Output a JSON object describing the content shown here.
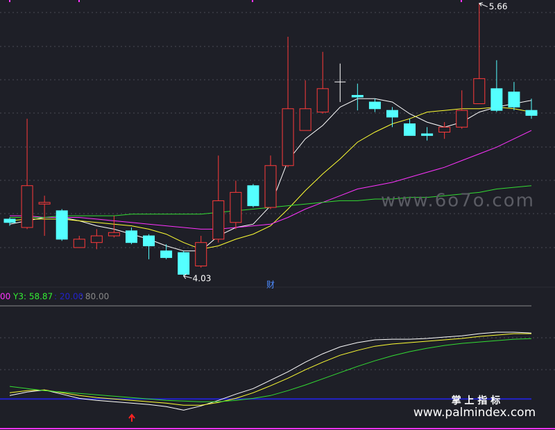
{
  "chart_data": [
    {
      "type": "candlestick",
      "open": [
        4.37,
        4.32,
        4.46,
        4.42,
        4.2,
        4.23,
        4.27,
        4.3,
        4.27,
        4.18,
        4.17,
        4.09,
        4.25,
        4.35,
        4.57,
        4.44,
        4.69,
        4.9,
        5.01,
        5.19,
        5.11,
        5.07,
        5.02,
        4.94,
        4.88,
        4.89,
        4.92,
        5.06,
        5.15,
        5.13,
        5.02
      ],
      "high": [
        4.38,
        4.97,
        4.51,
        4.43,
        4.27,
        4.31,
        4.39,
        4.32,
        4.28,
        4.22,
        4.18,
        4.27,
        4.75,
        4.6,
        4.58,
        4.75,
        5.46,
        5.2,
        5.37,
        5.3,
        5.18,
        5.09,
        5.04,
        4.97,
        4.92,
        4.95,
        5.14,
        5.66,
        5.32,
        5.19,
        5.09
      ],
      "low": [
        4.33,
        4.31,
        4.27,
        4.24,
        4.2,
        4.19,
        4.26,
        4.22,
        4.13,
        4.13,
        4.03,
        4.08,
        4.23,
        4.31,
        4.44,
        4.43,
        4.68,
        4.9,
        5.0,
        5.07,
        5.02,
        5.01,
        4.92,
        4.87,
        4.84,
        4.85,
        4.91,
        5.06,
        5.01,
        5.02,
        4.97
      ],
      "close": [
        4.35,
        4.57,
        4.47,
        4.25,
        4.25,
        4.27,
        4.29,
        4.23,
        4.21,
        4.14,
        4.04,
        4.23,
        4.48,
        4.53,
        4.45,
        4.69,
        5.03,
        5.03,
        5.15,
        5.19,
        5.1,
        5.03,
        4.98,
        4.87,
        4.87,
        4.92,
        5.02,
        5.21,
        5.02,
        5.04,
        4.99
      ],
      "colors": {
        "up": "#ff3b3b",
        "down": "#54ffff",
        "flat": "#ffffff"
      },
      "series": [
        {
          "color": "#ffffff",
          "values": [
            4.34,
            4.36,
            4.38,
            4.38,
            4.36,
            4.33,
            4.31,
            4.28,
            4.25,
            4.21,
            4.18,
            4.18,
            4.27,
            4.32,
            4.34,
            4.45,
            4.72,
            4.85,
            4.93,
            5.04,
            5.09,
            5.09,
            5.07,
            5.0,
            4.95,
            4.92,
            4.95,
            5.01,
            5.04,
            5.06,
            5.08
          ]
        },
        {
          "color": "#ffff33",
          "values": [
            4.36,
            4.37,
            4.37,
            4.37,
            4.36,
            4.35,
            4.34,
            4.33,
            4.31,
            4.28,
            4.23,
            4.19,
            4.21,
            4.25,
            4.28,
            4.33,
            4.43,
            4.54,
            4.64,
            4.73,
            4.83,
            4.89,
            4.94,
            4.97,
            5.01,
            5.02,
            5.03,
            5.03,
            5.04,
            5.03,
            5.01
          ]
        },
        {
          "color": "#ff33ff",
          "values": [
            4.39,
            4.39,
            4.38,
            4.38,
            4.38,
            4.37,
            4.36,
            4.35,
            4.34,
            4.33,
            4.32,
            4.31,
            4.31,
            4.32,
            4.33,
            4.34,
            4.38,
            4.43,
            4.47,
            4.51,
            4.55,
            4.57,
            4.59,
            4.62,
            4.65,
            4.68,
            4.72,
            4.76,
            4.8,
            4.85,
            4.9
          ]
        },
        {
          "color": "#33dd33",
          "values": [
            4.38,
            4.38,
            4.38,
            4.39,
            4.39,
            4.39,
            4.39,
            4.4,
            4.4,
            4.4,
            4.4,
            4.4,
            4.41,
            4.42,
            4.43,
            4.44,
            4.45,
            4.46,
            4.47,
            4.48,
            4.48,
            4.49,
            4.49,
            4.5,
            4.5,
            4.51,
            4.52,
            4.53,
            4.55,
            4.56,
            4.57
          ]
        }
      ],
      "ylim": [
        3.98,
        5.68
      ],
      "annotations": [
        {
          "text": "财",
          "index": 15,
          "color": "#4d8bff"
        }
      ]
    },
    {
      "type": "line",
      "header": [
        {
          "text": "00",
          "color": "#ff33ff"
        },
        {
          "text": "Y3: 58.87",
          "color": "#33ee33"
        }
      ],
      "levels": [
        {
          "value": 20,
          "label": ": 20.00",
          "color": "#2222cc"
        },
        {
          "value": 80,
          "label": ": 80.00",
          "color": "#888888"
        }
      ],
      "series": [
        {
          "color": "#ffffff",
          "values": [
            22.2,
            24.5,
            25.8,
            23.1,
            20.4,
            19.1,
            18.2,
            17.3,
            16.4,
            15.1,
            12.8,
            15.5,
            19.1,
            23.1,
            26.7,
            32.1,
            37.5,
            43.7,
            49.1,
            53.6,
            56.3,
            58.1,
            58.5,
            58.5,
            59.0,
            59.9,
            60.7,
            62.1,
            63.0,
            63.0,
            62.5
          ]
        },
        {
          "color": "#ffff33",
          "values": [
            24.0,
            25.4,
            25.8,
            24.0,
            22.2,
            20.9,
            20.0,
            19.1,
            18.2,
            17.3,
            16.0,
            16.0,
            17.8,
            20.4,
            24.0,
            28.5,
            33.4,
            38.8,
            43.7,
            48.2,
            51.3,
            54.0,
            55.4,
            56.3,
            57.2,
            58.1,
            59.0,
            60.3,
            61.2,
            62.1,
            62.1
          ]
        },
        {
          "color": "#33dd33",
          "values": [
            28.1,
            26.7,
            25.4,
            24.5,
            23.6,
            22.7,
            21.8,
            20.9,
            20.0,
            19.1,
            18.7,
            18.2,
            18.2,
            19.1,
            20.4,
            22.2,
            25.4,
            29.0,
            33.0,
            37.0,
            41.0,
            44.6,
            47.8,
            50.5,
            52.7,
            54.5,
            55.8,
            56.7,
            57.6,
            58.5,
            58.87
          ]
        }
      ],
      "ylim": [
        0,
        80
      ]
    }
  ],
  "watermarks": [
    "www.6o7o.com",
    "掌 上 指 标",
    "www.palmindex.com"
  ]
}
